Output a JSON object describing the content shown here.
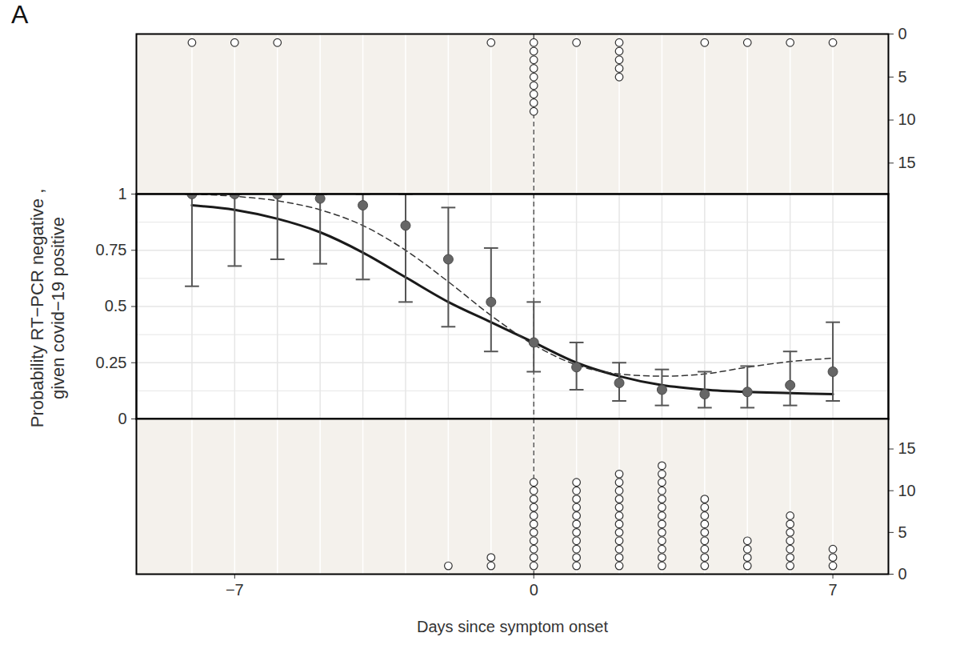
{
  "chart_data": [
    {
      "type": "dot_count",
      "title": "A",
      "x": [
        -8,
        -7,
        -6,
        -5,
        -4,
        -3,
        -2,
        -1,
        0,
        1,
        2,
        3,
        4,
        5,
        6,
        7
      ],
      "values": [
        1,
        1,
        1,
        0,
        0,
        0,
        0,
        1,
        9,
        1,
        5,
        0,
        1,
        1,
        1,
        1
      ],
      "marker": "open_circle",
      "color": "#333333",
      "xlim": [
        -9.3,
        8.3
      ],
      "xticks": [
        {
          "value": -7,
          "label": "−7"
        },
        0,
        7
      ],
      "minor_xticks": [
        -8,
        -7,
        -6,
        -5,
        -4,
        -3,
        -2,
        -1,
        0,
        1,
        2,
        3,
        4,
        5,
        6,
        7
      ],
      "ylim": [
        18.6,
        0
      ],
      "yticks": [
        0,
        5,
        10,
        15
      ],
      "grid": "x",
      "tick_labels": "y",
      "reference_x": 0
    },
    {
      "type": "line",
      "ylabel": [
        "Probability  RT−PCR negative ,",
        "given covid−19 positive"
      ],
      "x": [
        -8,
        -7,
        -6,
        -5,
        -4,
        -3,
        -2,
        -1,
        0,
        1,
        2,
        3,
        4,
        5,
        6,
        7
      ],
      "xlim": [
        -9.3,
        8.3
      ],
      "xticks": [
        {
          "value": -7,
          "label": "−7"
        },
        0,
        7
      ],
      "minor_xticks": [
        -8,
        -7,
        -6,
        -5,
        -4,
        -3,
        -2,
        -1,
        0,
        1,
        2,
        3,
        4,
        5,
        6,
        7
      ],
      "ylim": [
        0,
        1
      ],
      "yticks": [
        0,
        0.25,
        0.5,
        0.75,
        1
      ],
      "minor_yticks": [
        0.125,
        0.375,
        0.625,
        0.875
      ],
      "grid": true,
      "tick_labels": "y",
      "reference_x": 0,
      "series": [
        {
          "type": "line",
          "line_style": "solid",
          "color": "#1a1a1a",
          "values": [
            0.95,
            0.93,
            0.89,
            0.83,
            0.74,
            0.63,
            0.52,
            0.43,
            0.34,
            0.25,
            0.19,
            0.15,
            0.13,
            0.12,
            0.115,
            0.11
          ]
        },
        {
          "type": "line",
          "line_style": "dashed",
          "color": "#333333",
          "values": [
            1.0,
            0.99,
            0.97,
            0.93,
            0.86,
            0.75,
            0.61,
            0.46,
            0.33,
            0.24,
            0.2,
            0.19,
            0.2,
            0.23,
            0.255,
            0.27
          ]
        },
        {
          "type": "scatter",
          "marker": "circle",
          "color": "#666666",
          "values": [
            1.0,
            1.0,
            1.0,
            0.98,
            0.95,
            0.86,
            0.71,
            0.52,
            0.34,
            0.23,
            0.16,
            0.13,
            0.11,
            0.12,
            0.15,
            0.21
          ],
          "ci_low": [
            0.59,
            0.68,
            0.71,
            0.69,
            0.62,
            0.52,
            0.41,
            0.3,
            0.21,
            0.13,
            0.08,
            0.06,
            0.05,
            0.05,
            0.06,
            0.08
          ],
          "ci_high": [
            1.0,
            1.0,
            1.0,
            1.0,
            1.0,
            1.0,
            0.94,
            0.76,
            0.52,
            0.34,
            0.25,
            0.22,
            0.21,
            0.235,
            0.3,
            0.43
          ]
        }
      ]
    },
    {
      "type": "dot_count",
      "xlabel": "Days since symptom onset",
      "x": [
        -8,
        -7,
        -6,
        -5,
        -4,
        -3,
        -2,
        -1,
        0,
        1,
        2,
        3,
        4,
        5,
        6,
        7
      ],
      "values": [
        0,
        0,
        0,
        0,
        0,
        0,
        1,
        2,
        11,
        11,
        12,
        13,
        9,
        4,
        7,
        3
      ],
      "marker": "open_circle",
      "color": "#333333",
      "xlim": [
        -9.3,
        8.3
      ],
      "xticks": [
        {
          "value": -7,
          "label": "−7"
        },
        0,
        7
      ],
      "minor_xticks": [
        -8,
        -7,
        -6,
        -5,
        -4,
        -3,
        -2,
        -1,
        0,
        1,
        2,
        3,
        4,
        5,
        6,
        7
      ],
      "ylim": [
        0,
        18.6
      ],
      "yticks": [
        0,
        5,
        10,
        15
      ],
      "grid": "x",
      "reference_x": 0
    }
  ]
}
